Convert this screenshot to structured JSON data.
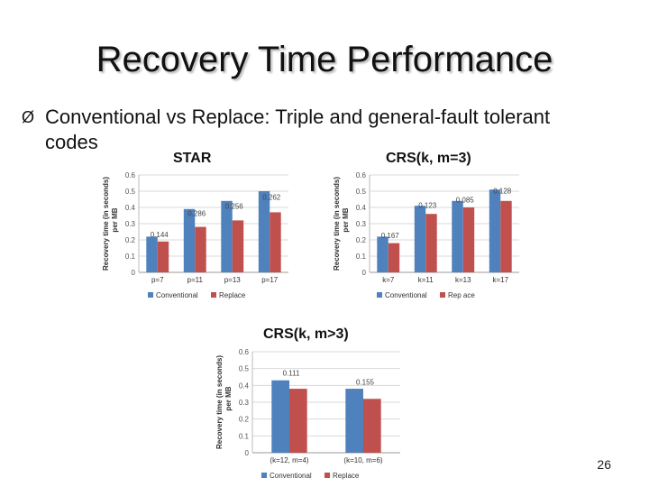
{
  "slide": {
    "title": "Recovery Time Performance",
    "bullet_mark": "Ø",
    "bullet_line1": "Conventional vs Replace: Triple and general-fault tolerant",
    "bullet_line2": "codes",
    "page_number": "26"
  },
  "colors": {
    "conventional": "#4f81bd",
    "replace": "#c0504d",
    "grid": "#d9d9d9"
  },
  "chart_data": [
    {
      "type": "bar",
      "title": "STAR",
      "categories": [
        "p=7",
        "p=11",
        "p=13",
        "p=17"
      ],
      "series": [
        {
          "name": "Conventional",
          "values": [
            0.22,
            0.39,
            0.44,
            0.5
          ]
        },
        {
          "name": "Replace",
          "values": [
            0.19,
            0.28,
            0.32,
            0.37
          ]
        }
      ],
      "annotations": [
        "0.144",
        "0.286",
        "0.256",
        "0.262"
      ],
      "xlabel": "",
      "ylabel_line1": "Recovery time (in seconds)",
      "ylabel_line2": "per MB",
      "ylim": [
        0,
        0.6
      ],
      "yticks": [
        "0",
        "0.1",
        "0.2",
        "0.3",
        "0.4",
        "0.5",
        "0.6"
      ],
      "legend": "bottom"
    },
    {
      "type": "bar",
      "title": "CRS(k, m=3)",
      "categories": [
        "k=7",
        "k=11",
        "k=13",
        "k=17"
      ],
      "series": [
        {
          "name": "Conventional",
          "values": [
            0.22,
            0.41,
            0.44,
            0.51
          ]
        },
        {
          "name": "Rep ace",
          "values": [
            0.18,
            0.36,
            0.4,
            0.44
          ]
        }
      ],
      "annotations": [
        "0.167",
        "0.123",
        "0.085",
        "0.128"
      ],
      "xlabel": "",
      "ylabel_line1": "Recovery time (in seconds)",
      "ylabel_line2": "per MB",
      "ylim": [
        0,
        0.6
      ],
      "yticks": [
        "0",
        "0.1",
        "0.2",
        "0.3",
        "0.4",
        "0.5",
        "0.6"
      ],
      "legend": "bottom"
    },
    {
      "type": "bar",
      "title": "CRS(k, m>3)",
      "categories": [
        "(k=12, m=4)",
        "(k=10, m=6)"
      ],
      "series": [
        {
          "name": "Conventional",
          "values": [
            0.43,
            0.38
          ]
        },
        {
          "name": "Replace",
          "values": [
            0.38,
            0.32
          ]
        }
      ],
      "annotations": [
        "0.111",
        "0.155"
      ],
      "xlabel": "",
      "ylabel_line1": "Recovery time (in seconds)",
      "ylabel_line2": "per MB",
      "ylim": [
        0,
        0.6
      ],
      "yticks": [
        "0",
        "0.1",
        "0.2",
        "0.3",
        "0.4",
        "0.5",
        "0.6"
      ],
      "legend": "bottom"
    }
  ]
}
